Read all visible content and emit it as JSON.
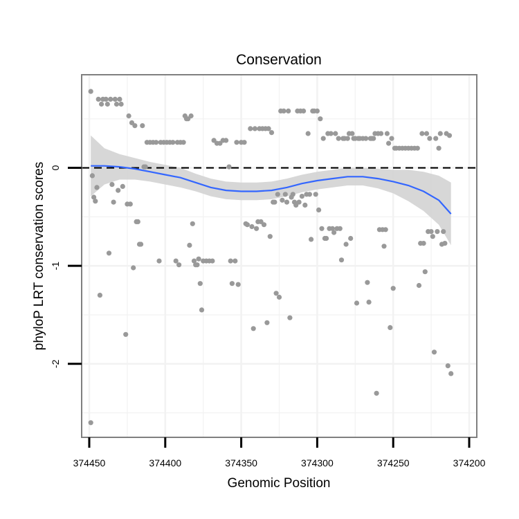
{
  "chart_data": {
    "type": "scatter",
    "title": "Conservation",
    "xlabel": "Genomic Position",
    "ylabel": "phyloP LRT conservation scores",
    "x_reversed": true,
    "xlim": [
      374455,
      374195
    ],
    "ylim": [
      -2.75,
      0.95
    ],
    "x_ticks": [
      374450,
      374400,
      374350,
      374300,
      374250,
      374200
    ],
    "x_tick_labels": [
      "374450",
      "374400",
      "374350",
      "374300",
      "374250",
      "374200"
    ],
    "y_ticks": [
      0,
      -1,
      -2
    ],
    "y_tick_labels": [
      "0",
      "-1",
      "-2"
    ],
    "grid": true,
    "reference_line": {
      "y": 0,
      "style": "dashed",
      "color": "#000000"
    },
    "colors": {
      "points": "#999999",
      "smooth_line": "#3366FF",
      "confidence_band": "#d3d3d3",
      "panel_border": "#7f7f7f",
      "grid": "#f2f2f2"
    },
    "series": [
      {
        "name": "observations",
        "points": [
          [
            374449,
            0.78
          ],
          [
            374449,
            -2.6
          ],
          [
            374448,
            -0.08
          ],
          [
            374447,
            -0.3
          ],
          [
            374446,
            -0.34
          ],
          [
            374445,
            -0.2
          ],
          [
            374444,
            0.7
          ],
          [
            374443,
            -1.3
          ],
          [
            374442,
            0.65
          ],
          [
            374441,
            0.7
          ],
          [
            374439,
            0.7
          ],
          [
            374438,
            0.65
          ],
          [
            374437,
            -0.87
          ],
          [
            374436,
            0.7
          ],
          [
            374435,
            -0.17
          ],
          [
            374434,
            -0.35
          ],
          [
            374433,
            0.7
          ],
          [
            374432,
            0.65
          ],
          [
            374431,
            -0.23
          ],
          [
            374430,
            0.7
          ],
          [
            374429,
            0.65
          ],
          [
            374428,
            -0.19
          ],
          [
            374426,
            -1.7
          ],
          [
            374425,
            -0.37
          ],
          [
            374424,
            0.53
          ],
          [
            374423,
            -0.37
          ],
          [
            374422,
            0.46
          ],
          [
            374421,
            -1.02
          ],
          [
            374420,
            0.43
          ],
          [
            374419,
            -0.55
          ],
          [
            374418,
            -0.55
          ],
          [
            374417,
            -0.78
          ],
          [
            374416,
            -0.78
          ],
          [
            374415,
            0.43
          ],
          [
            374414,
            0.01
          ],
          [
            374413,
            0.01
          ],
          [
            374412,
            0.26
          ],
          [
            374410,
            0.26
          ],
          [
            374408,
            0.26
          ],
          [
            374406,
            0.26
          ],
          [
            374404,
            -0.95
          ],
          [
            374403,
            0.26
          ],
          [
            374401,
            0.26
          ],
          [
            374399,
            0.26
          ],
          [
            374397,
            0.26
          ],
          [
            374395,
            0.26
          ],
          [
            374393,
            -0.95
          ],
          [
            374392,
            0.26
          ],
          [
            374391,
            -0.99
          ],
          [
            374390,
            0.26
          ],
          [
            374388,
            0.26
          ],
          [
            374387,
            0.53
          ],
          [
            374386,
            0.5
          ],
          [
            374385,
            0.5
          ],
          [
            374384,
            -0.79
          ],
          [
            374383,
            0.53
          ],
          [
            374382,
            -0.57
          ],
          [
            374381,
            -0.95
          ],
          [
            374380,
            -0.99
          ],
          [
            374379,
            -0.99
          ],
          [
            374378,
            -0.93
          ],
          [
            374377,
            -1.18
          ],
          [
            374376,
            -1.45
          ],
          [
            374375,
            -0.95
          ],
          [
            374373,
            -0.95
          ],
          [
            374371,
            -0.95
          ],
          [
            374369,
            -0.95
          ],
          [
            374368,
            0.28
          ],
          [
            374366,
            0.25
          ],
          [
            374364,
            0.25
          ],
          [
            374362,
            0.28
          ],
          [
            374360,
            0.28
          ],
          [
            374358,
            0.01
          ],
          [
            374357,
            -0.95
          ],
          [
            374356,
            -1.18
          ],
          [
            374354,
            -0.95
          ],
          [
            374353,
            0.26
          ],
          [
            374352,
            -1.19
          ],
          [
            374350,
            0.26
          ],
          [
            374348,
            0.26
          ],
          [
            374347,
            -0.57
          ],
          [
            374346,
            -0.58
          ],
          [
            374344,
            0.4
          ],
          [
            374343,
            -0.6
          ],
          [
            374342,
            -1.64
          ],
          [
            374341,
            0.4
          ],
          [
            374340,
            -0.62
          ],
          [
            374339,
            -0.55
          ],
          [
            374338,
            0.4
          ],
          [
            374337,
            -0.55
          ],
          [
            374336,
            0.4
          ],
          [
            374335,
            -0.58
          ],
          [
            374334,
            0.4
          ],
          [
            374333,
            -1.58
          ],
          [
            374332,
            0.4
          ],
          [
            374331,
            -0.7
          ],
          [
            374330,
            0.36
          ],
          [
            374329,
            -0.35
          ],
          [
            374328,
            -0.35
          ],
          [
            374327,
            -1.28
          ],
          [
            374326,
            -0.27
          ],
          [
            374325,
            -1.32
          ],
          [
            374324,
            0.58
          ],
          [
            374323,
            -0.33
          ],
          [
            374322,
            0.58
          ],
          [
            374321,
            -0.27
          ],
          [
            374320,
            -0.35
          ],
          [
            374319,
            0.58
          ],
          [
            374318,
            -1.53
          ],
          [
            374317,
            -0.3
          ],
          [
            374316,
            -0.27
          ],
          [
            374315,
            -0.35
          ],
          [
            374314,
            -0.38
          ],
          [
            374313,
            0.58
          ],
          [
            374312,
            -0.35
          ],
          [
            374311,
            0.58
          ],
          [
            374310,
            -0.29
          ],
          [
            374309,
            0.58
          ],
          [
            374308,
            -0.38
          ],
          [
            374307,
            -0.27
          ],
          [
            374306,
            0.35
          ],
          [
            374305,
            -0.27
          ],
          [
            374304,
            -0.73
          ],
          [
            374303,
            0.58
          ],
          [
            374302,
            0.58
          ],
          [
            374301,
            -0.27
          ],
          [
            374300,
            0.58
          ],
          [
            374299,
            -0.43
          ],
          [
            374298,
            0.5
          ],
          [
            374297,
            -0.62
          ],
          [
            374296,
            0.3
          ],
          [
            374295,
            -0.72
          ],
          [
            374294,
            -0.72
          ],
          [
            374293,
            0.35
          ],
          [
            374292,
            -0.62
          ],
          [
            374291,
            0.35
          ],
          [
            374290,
            -0.62
          ],
          [
            374289,
            -0.66
          ],
          [
            374288,
            0.35
          ],
          [
            374287,
            -0.62
          ],
          [
            374286,
            0.3
          ],
          [
            374285,
            -0.62
          ],
          [
            374284,
            -0.94
          ],
          [
            374283,
            0.3
          ],
          [
            374282,
            0.3
          ],
          [
            374281,
            -0.78
          ],
          [
            374280,
            0.3
          ],
          [
            374279,
            0.35
          ],
          [
            374278,
            -0.72
          ],
          [
            374277,
            0.35
          ],
          [
            374276,
            0.3
          ],
          [
            374275,
            0.3
          ],
          [
            374274,
            -1.38
          ],
          [
            374273,
            0.3
          ],
          [
            374272,
            0.3
          ],
          [
            374270,
            0.3
          ],
          [
            374268,
            0.3
          ],
          [
            374267,
            -1.17
          ],
          [
            374266,
            -1.37
          ],
          [
            374265,
            0.3
          ],
          [
            374264,
            0.3
          ],
          [
            374263,
            0.3
          ],
          [
            374262,
            0.35
          ],
          [
            374261,
            -2.3
          ],
          [
            374260,
            0.35
          ],
          [
            374259,
            -0.63
          ],
          [
            374258,
            0.35
          ],
          [
            374257,
            -0.63
          ],
          [
            374256,
            -0.8
          ],
          [
            374255,
            -0.63
          ],
          [
            374254,
            0.35
          ],
          [
            374253,
            0.25
          ],
          [
            374252,
            -1.63
          ],
          [
            374251,
            0.3
          ],
          [
            374250,
            -1.23
          ],
          [
            374249,
            0.2
          ],
          [
            374248,
            0.2
          ],
          [
            374246,
            0.2
          ],
          [
            374244,
            0.2
          ],
          [
            374242,
            0.2
          ],
          [
            374240,
            0.2
          ],
          [
            374238,
            0.2
          ],
          [
            374236,
            0.2
          ],
          [
            374234,
            0.2
          ],
          [
            374233,
            -1.2
          ],
          [
            374232,
            -0.77
          ],
          [
            374231,
            0.35
          ],
          [
            374230,
            -0.77
          ],
          [
            374229,
            -1.06
          ],
          [
            374228,
            0.35
          ],
          [
            374227,
            -0.65
          ],
          [
            374226,
            0.3
          ],
          [
            374225,
            -0.65
          ],
          [
            374224,
            -0.7
          ],
          [
            374223,
            -1.88
          ],
          [
            374222,
            0.3
          ],
          [
            374221,
            -0.65
          ],
          [
            374220,
            0.2
          ],
          [
            374219,
            0.35
          ],
          [
            374218,
            -0.78
          ],
          [
            374217,
            -0.65
          ],
          [
            374216,
            -0.77
          ],
          [
            374215,
            0.35
          ],
          [
            374214,
            -2.02
          ],
          [
            374213,
            0.33
          ],
          [
            374212,
            -2.1
          ]
        ]
      },
      {
        "name": "smooth",
        "x": [
          374449,
          374440,
          374430,
          374420,
          374410,
          374400,
          374390,
          374380,
          374370,
          374360,
          374350,
          374340,
          374330,
          374320,
          374310,
          374300,
          374290,
          374280,
          374270,
          374260,
          374250,
          374240,
          374230,
          374220,
          374212
        ],
        "y": [
          0.02,
          0.02,
          0.01,
          -0.01,
          -0.04,
          -0.07,
          -0.1,
          -0.15,
          -0.2,
          -0.23,
          -0.24,
          -0.24,
          -0.23,
          -0.2,
          -0.16,
          -0.13,
          -0.11,
          -0.09,
          -0.09,
          -0.11,
          -0.14,
          -0.18,
          -0.24,
          -0.33,
          -0.47
        ],
        "lower": [
          -0.29,
          -0.17,
          -0.12,
          -0.12,
          -0.14,
          -0.17,
          -0.2,
          -0.24,
          -0.29,
          -0.32,
          -0.33,
          -0.33,
          -0.32,
          -0.29,
          -0.25,
          -0.22,
          -0.2,
          -0.18,
          -0.18,
          -0.21,
          -0.26,
          -0.34,
          -0.44,
          -0.58,
          -0.79
        ],
        "upper": [
          0.33,
          0.2,
          0.14,
          0.1,
          0.06,
          0.03,
          0.0,
          -0.06,
          -0.11,
          -0.14,
          -0.15,
          -0.15,
          -0.14,
          -0.11,
          -0.07,
          -0.04,
          -0.02,
          0.0,
          0.0,
          -0.01,
          -0.02,
          -0.02,
          -0.04,
          -0.08,
          -0.15
        ]
      }
    ]
  }
}
